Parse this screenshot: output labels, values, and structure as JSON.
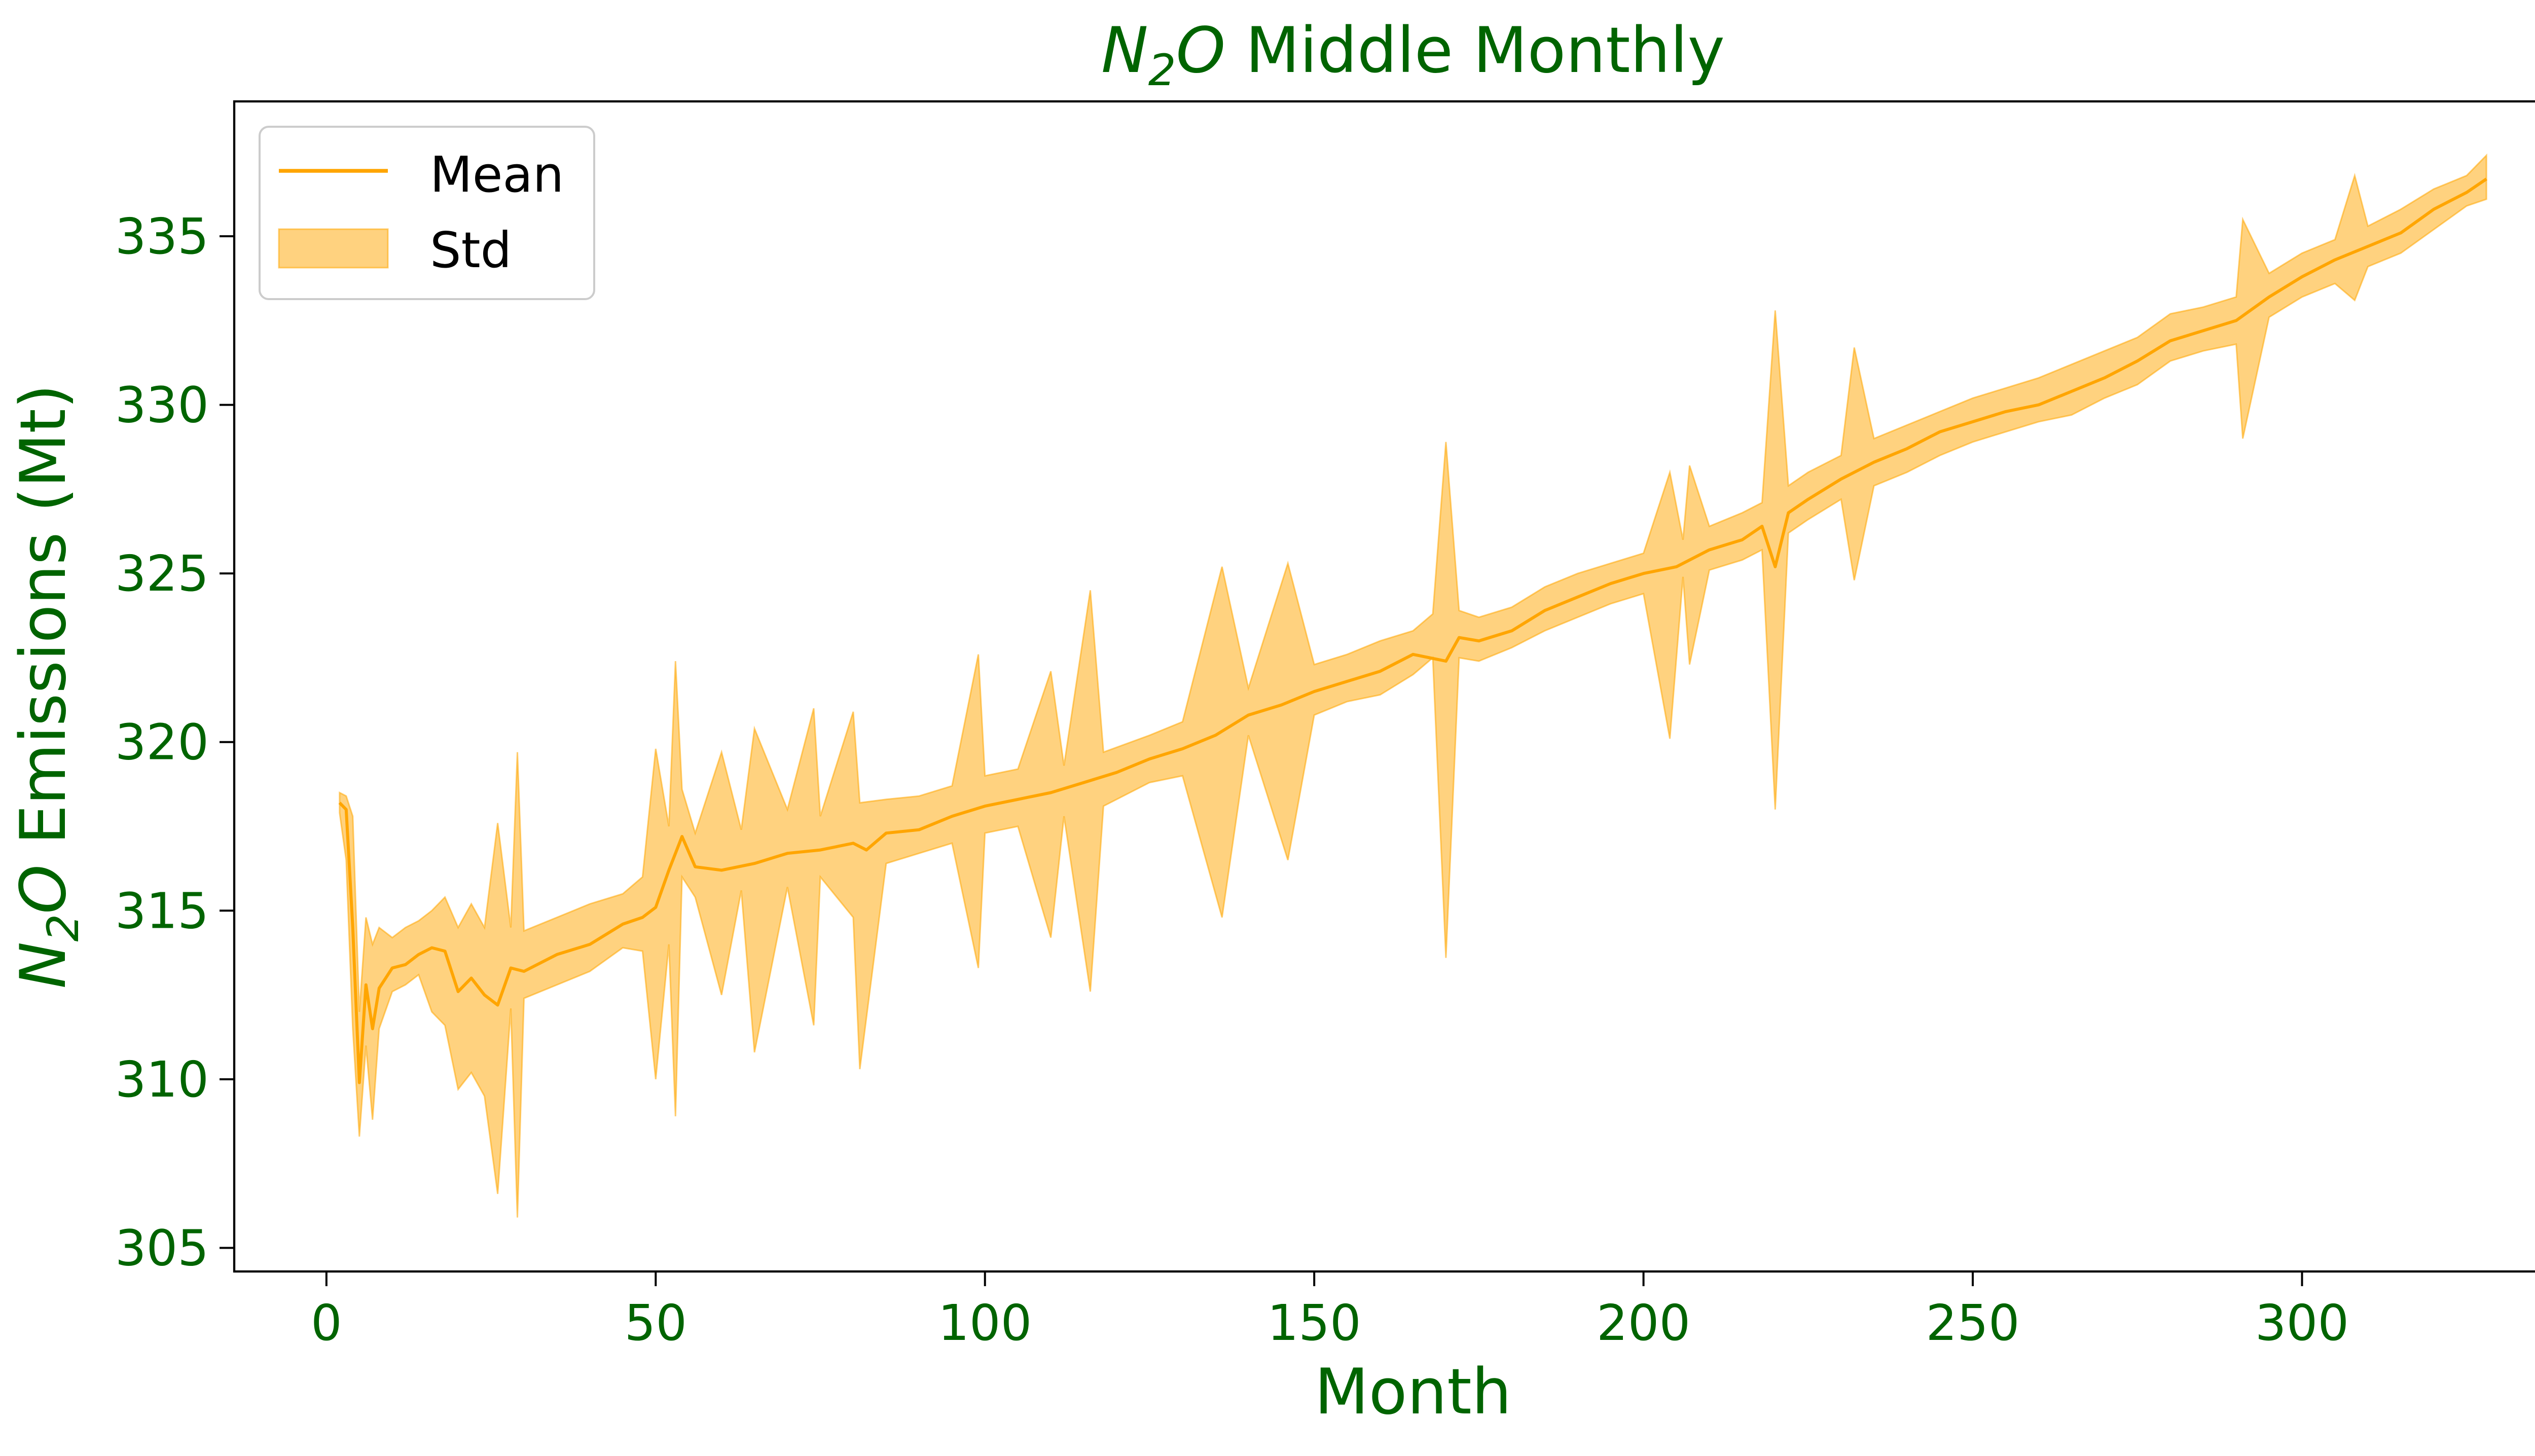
{
  "chart_data": {
    "type": "area",
    "title": {
      "mol_n": "N",
      "mol_sub": "2",
      "mol_o": "O",
      "rest": " Middle Monthly"
    },
    "xlabel": "Month",
    "ylabel": {
      "mol_n": "N",
      "mol_sub": "2",
      "mol_o": "O",
      "rest": " Emissions (Mt)"
    },
    "xlim": [
      -14,
      344
    ],
    "ylim": [
      304.3,
      339.0
    ],
    "xticks": [
      0,
      50,
      100,
      150,
      200,
      250,
      300
    ],
    "yticks": [
      305,
      310,
      315,
      320,
      325,
      330,
      335
    ],
    "text_color": "#006400",
    "mean_color": "#FFA500",
    "std_fill_color": "#FFA500",
    "std_fill_opacity": 0.5,
    "legend_position": "upper-left",
    "grid": false,
    "legend": [
      {
        "label": "Mean",
        "kind": "line"
      },
      {
        "label": "Std",
        "kind": "patch"
      }
    ],
    "series": [
      {
        "name": "Mean",
        "points": [
          [
            2,
            318.2
          ],
          [
            3,
            318.0
          ],
          [
            4,
            314.5
          ],
          [
            5,
            309.9
          ],
          [
            6,
            312.8
          ],
          [
            7,
            311.5
          ],
          [
            8,
            312.7
          ],
          [
            10,
            313.3
          ],
          [
            12,
            313.4
          ],
          [
            14,
            313.7
          ],
          [
            16,
            313.9
          ],
          [
            18,
            313.8
          ],
          [
            20,
            312.6
          ],
          [
            22,
            313.0
          ],
          [
            24,
            312.5
          ],
          [
            26,
            312.2
          ],
          [
            28,
            313.3
          ],
          [
            30,
            313.2
          ],
          [
            35,
            313.7
          ],
          [
            40,
            314.0
          ],
          [
            45,
            314.6
          ],
          [
            48,
            314.8
          ],
          [
            50,
            315.1
          ],
          [
            52,
            316.2
          ],
          [
            54,
            317.2
          ],
          [
            56,
            316.3
          ],
          [
            60,
            316.2
          ],
          [
            65,
            316.4
          ],
          [
            70,
            316.7
          ],
          [
            75,
            316.8
          ],
          [
            80,
            317.0
          ],
          [
            82,
            316.8
          ],
          [
            85,
            317.3
          ],
          [
            90,
            317.4
          ],
          [
            95,
            317.8
          ],
          [
            100,
            318.1
          ],
          [
            105,
            318.3
          ],
          [
            110,
            318.5
          ],
          [
            115,
            318.8
          ],
          [
            120,
            319.1
          ],
          [
            125,
            319.5
          ],
          [
            130,
            319.8
          ],
          [
            135,
            320.2
          ],
          [
            140,
            320.8
          ],
          [
            145,
            321.1
          ],
          [
            150,
            321.5
          ],
          [
            155,
            321.8
          ],
          [
            160,
            322.1
          ],
          [
            165,
            322.6
          ],
          [
            170,
            322.4
          ],
          [
            172,
            323.1
          ],
          [
            175,
            323.0
          ],
          [
            180,
            323.3
          ],
          [
            185,
            323.9
          ],
          [
            190,
            324.3
          ],
          [
            195,
            324.7
          ],
          [
            200,
            325.0
          ],
          [
            205,
            325.2
          ],
          [
            210,
            325.7
          ],
          [
            215,
            326.0
          ],
          [
            218,
            326.4
          ],
          [
            220,
            325.2
          ],
          [
            222,
            326.8
          ],
          [
            225,
            327.2
          ],
          [
            230,
            327.8
          ],
          [
            235,
            328.3
          ],
          [
            240,
            328.7
          ],
          [
            245,
            329.2
          ],
          [
            250,
            329.5
          ],
          [
            255,
            329.8
          ],
          [
            260,
            330.0
          ],
          [
            265,
            330.4
          ],
          [
            270,
            330.8
          ],
          [
            275,
            331.3
          ],
          [
            280,
            331.9
          ],
          [
            285,
            332.2
          ],
          [
            290,
            332.5
          ],
          [
            295,
            333.2
          ],
          [
            300,
            333.8
          ],
          [
            305,
            334.3
          ],
          [
            310,
            334.7
          ],
          [
            315,
            335.1
          ],
          [
            320,
            335.8
          ],
          [
            325,
            336.3
          ],
          [
            328,
            336.7
          ]
        ]
      },
      {
        "name": "Std",
        "lower": [
          [
            2,
            317.9
          ],
          [
            3,
            316.5
          ],
          [
            4,
            311.5
          ],
          [
            5,
            308.3
          ],
          [
            6,
            311.0
          ],
          [
            7,
            308.8
          ],
          [
            8,
            311.5
          ],
          [
            10,
            312.6
          ],
          [
            12,
            312.8
          ],
          [
            14,
            313.1
          ],
          [
            16,
            312.0
          ],
          [
            18,
            311.6
          ],
          [
            20,
            309.7
          ],
          [
            22,
            310.2
          ],
          [
            24,
            309.5
          ],
          [
            26,
            306.6
          ],
          [
            28,
            312.1
          ],
          [
            29,
            305.9
          ],
          [
            30,
            312.4
          ],
          [
            35,
            312.8
          ],
          [
            40,
            313.2
          ],
          [
            45,
            313.9
          ],
          [
            48,
            313.8
          ],
          [
            50,
            310.0
          ],
          [
            52,
            314.0
          ],
          [
            53,
            308.9
          ],
          [
            54,
            316.0
          ],
          [
            56,
            315.4
          ],
          [
            60,
            312.5
          ],
          [
            63,
            315.6
          ],
          [
            65,
            310.8
          ],
          [
            70,
            315.7
          ],
          [
            74,
            311.6
          ],
          [
            75,
            316.0
          ],
          [
            80,
            314.8
          ],
          [
            81,
            310.3
          ],
          [
            85,
            316.4
          ],
          [
            90,
            316.7
          ],
          [
            95,
            317.0
          ],
          [
            99,
            313.3
          ],
          [
            100,
            317.3
          ],
          [
            105,
            317.5
          ],
          [
            110,
            314.2
          ],
          [
            112,
            317.8
          ],
          [
            116,
            312.6
          ],
          [
            118,
            318.1
          ],
          [
            125,
            318.8
          ],
          [
            130,
            319.0
          ],
          [
            136,
            314.8
          ],
          [
            140,
            320.2
          ],
          [
            146,
            316.5
          ],
          [
            150,
            320.8
          ],
          [
            155,
            321.2
          ],
          [
            160,
            321.4
          ],
          [
            165,
            322.0
          ],
          [
            168,
            322.5
          ],
          [
            170,
            313.6
          ],
          [
            172,
            322.5
          ],
          [
            175,
            322.4
          ],
          [
            180,
            322.8
          ],
          [
            185,
            323.3
          ],
          [
            190,
            323.7
          ],
          [
            195,
            324.1
          ],
          [
            200,
            324.4
          ],
          [
            204,
            320.1
          ],
          [
            206,
            324.9
          ],
          [
            207,
            322.3
          ],
          [
            210,
            325.1
          ],
          [
            215,
            325.4
          ],
          [
            218,
            325.7
          ],
          [
            220,
            318.0
          ],
          [
            222,
            326.2
          ],
          [
            225,
            326.6
          ],
          [
            230,
            327.2
          ],
          [
            232,
            324.8
          ],
          [
            235,
            327.6
          ],
          [
            240,
            328.0
          ],
          [
            245,
            328.5
          ],
          [
            250,
            328.9
          ],
          [
            255,
            329.2
          ],
          [
            260,
            329.5
          ],
          [
            265,
            329.7
          ],
          [
            270,
            330.2
          ],
          [
            275,
            330.6
          ],
          [
            280,
            331.3
          ],
          [
            285,
            331.6
          ],
          [
            290,
            331.8
          ],
          [
            291,
            329.0
          ],
          [
            295,
            332.6
          ],
          [
            300,
            333.2
          ],
          [
            305,
            333.6
          ],
          [
            308,
            333.1
          ],
          [
            310,
            334.1
          ],
          [
            315,
            334.5
          ],
          [
            320,
            335.2
          ],
          [
            325,
            335.9
          ],
          [
            328,
            336.1
          ]
        ],
        "upper": [
          [
            2,
            318.5
          ],
          [
            3,
            318.4
          ],
          [
            4,
            317.8
          ],
          [
            5,
            312.0
          ],
          [
            6,
            314.8
          ],
          [
            7,
            314.0
          ],
          [
            8,
            314.5
          ],
          [
            10,
            314.2
          ],
          [
            12,
            314.5
          ],
          [
            14,
            314.7
          ],
          [
            16,
            315.0
          ],
          [
            18,
            315.4
          ],
          [
            20,
            314.5
          ],
          [
            22,
            315.2
          ],
          [
            24,
            314.5
          ],
          [
            26,
            317.6
          ],
          [
            28,
            314.5
          ],
          [
            29,
            319.7
          ],
          [
            30,
            314.4
          ],
          [
            35,
            314.8
          ],
          [
            40,
            315.2
          ],
          [
            45,
            315.5
          ],
          [
            48,
            316.0
          ],
          [
            50,
            319.8
          ],
          [
            52,
            317.5
          ],
          [
            53,
            322.4
          ],
          [
            54,
            318.6
          ],
          [
            56,
            317.3
          ],
          [
            60,
            319.7
          ],
          [
            63,
            317.4
          ],
          [
            65,
            320.4
          ],
          [
            70,
            318.0
          ],
          [
            74,
            321.0
          ],
          [
            75,
            317.8
          ],
          [
            80,
            320.9
          ],
          [
            81,
            318.2
          ],
          [
            85,
            318.3
          ],
          [
            90,
            318.4
          ],
          [
            95,
            318.7
          ],
          [
            99,
            322.6
          ],
          [
            100,
            319.0
          ],
          [
            105,
            319.2
          ],
          [
            110,
            322.1
          ],
          [
            112,
            319.3
          ],
          [
            116,
            324.5
          ],
          [
            118,
            319.7
          ],
          [
            125,
            320.2
          ],
          [
            130,
            320.6
          ],
          [
            136,
            325.2
          ],
          [
            140,
            321.6
          ],
          [
            146,
            325.3
          ],
          [
            150,
            322.3
          ],
          [
            155,
            322.6
          ],
          [
            160,
            323.0
          ],
          [
            165,
            323.3
          ],
          [
            168,
            323.8
          ],
          [
            170,
            328.9
          ],
          [
            172,
            323.9
          ],
          [
            175,
            323.7
          ],
          [
            180,
            324.0
          ],
          [
            185,
            324.6
          ],
          [
            190,
            325.0
          ],
          [
            195,
            325.3
          ],
          [
            200,
            325.6
          ],
          [
            204,
            328.0
          ],
          [
            206,
            326.0
          ],
          [
            207,
            328.2
          ],
          [
            210,
            326.4
          ],
          [
            215,
            326.8
          ],
          [
            218,
            327.1
          ],
          [
            220,
            332.8
          ],
          [
            222,
            327.6
          ],
          [
            225,
            328.0
          ],
          [
            230,
            328.5
          ],
          [
            232,
            331.7
          ],
          [
            235,
            329.0
          ],
          [
            240,
            329.4
          ],
          [
            245,
            329.8
          ],
          [
            250,
            330.2
          ],
          [
            255,
            330.5
          ],
          [
            260,
            330.8
          ],
          [
            265,
            331.2
          ],
          [
            270,
            331.6
          ],
          [
            275,
            332.0
          ],
          [
            280,
            332.7
          ],
          [
            285,
            332.9
          ],
          [
            290,
            333.2
          ],
          [
            291,
            335.5
          ],
          [
            295,
            333.9
          ],
          [
            300,
            334.5
          ],
          [
            305,
            334.9
          ],
          [
            308,
            336.8
          ],
          [
            310,
            335.3
          ],
          [
            315,
            335.8
          ],
          [
            320,
            336.4
          ],
          [
            325,
            336.8
          ],
          [
            328,
            337.4
          ]
        ]
      }
    ]
  }
}
